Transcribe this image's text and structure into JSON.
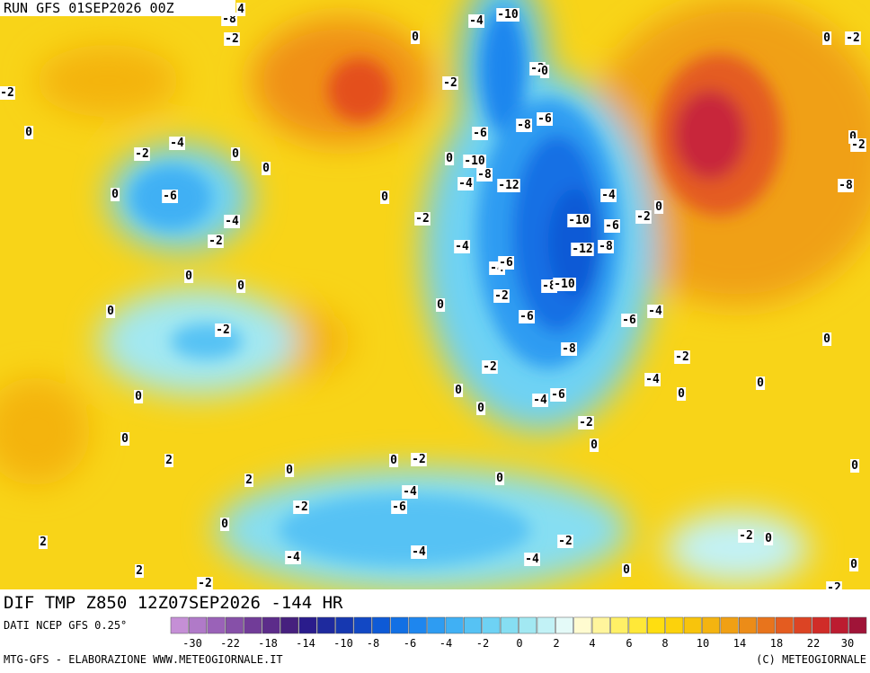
{
  "header": {
    "run": "RUN GFS 01SEP2026 00Z"
  },
  "map": {
    "contour_labels": [
      "-8",
      "4",
      "-2",
      "-4",
      "-10",
      "0",
      "-2",
      "-2",
      "-2",
      "0",
      "0",
      "-2",
      "-4",
      "0",
      "0",
      "0",
      "-6",
      "-4",
      "-2",
      "0",
      "-6",
      "-8",
      "-6",
      "-10",
      "-8",
      "-4",
      "-12",
      "0",
      "-2",
      "-4",
      "-10",
      "-6",
      "-2",
      "0",
      "-12",
      "-8",
      "-4",
      "-4",
      "-6",
      "-8",
      "-10",
      "-2",
      "0",
      "0",
      "0",
      "0",
      "-6",
      "-6",
      "-4",
      "-2",
      "-8",
      "-2",
      "-2",
      "0",
      "-4",
      "-6",
      "-4",
      "0",
      "0",
      "0",
      "0",
      "0",
      "-2",
      "0",
      "0",
      "2",
      "0",
      "-2",
      "0",
      "2",
      "0",
      "-4",
      "-6",
      "-2",
      "0",
      "2",
      "-4",
      "-4",
      "-4",
      "-2",
      "-2",
      "0",
      "2",
      "0",
      "-2",
      "0",
      "-2",
      "0",
      "-2",
      "0",
      "0",
      "-2",
      "0",
      "-2",
      "-8"
    ]
  },
  "footer": {
    "title": "DIF TMP Z850 12Z07SEP2026 -144 HR",
    "source": "DATI NCEP GFS 0.25°",
    "credit": "MTG-GFS - ELABORAZIONE WWW.METEOGIORNALE.IT",
    "copyright": "(C) METEOGIORNALE",
    "colorbar_labels": [
      "-30",
      "-22",
      "-18",
      "-14",
      "-10",
      "-8",
      "-6",
      "-4",
      "-2",
      "0",
      "2",
      "4",
      "6",
      "8",
      "10",
      "14",
      "18",
      "22",
      "30"
    ],
    "colorbar_colors": [
      "#c58fd6",
      "#b07ac8",
      "#9a62b8",
      "#8650a8",
      "#713c98",
      "#5c2c8a",
      "#46207e",
      "#2a1c8c",
      "#1e2a9e",
      "#1638b0",
      "#1248c4",
      "#0e5ad6",
      "#1270e4",
      "#1e86ee",
      "#2e9cf2",
      "#40b0f4",
      "#56c2f4",
      "#6ed2f4",
      "#86def2",
      "#a2e8f2",
      "#c2f2f6",
      "#e4faf8",
      "#fffbd0",
      "#fff59c",
      "#fff066",
      "#ffe838",
      "#ffde10",
      "#fcd20c",
      "#f8c40c",
      "#f4b410",
      "#f0a014",
      "#ec8c18",
      "#e8741c",
      "#e45c20",
      "#dc4424",
      "#d02c28",
      "#bc1c30",
      "#a01438"
    ]
  }
}
